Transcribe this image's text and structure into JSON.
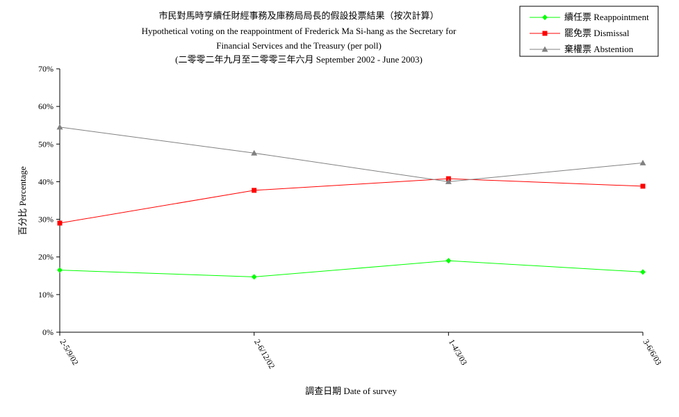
{
  "chart_data": {
    "type": "line",
    "title_lines": [
      "市民對馬時亨續任財經事務及庫務局局長的假設投票結果（按次計算）",
      "Hypothetical voting on the reappointment of  Frederick Ma Si-hang as the Secretary for",
      "Financial Services and the Treasury (per poll)",
      "(二零零二年九月至二零零三年六月 September 2002 - June 2003)"
    ],
    "xlabel": "調查日期 Date of survey",
    "ylabel": "百分比 Percentage",
    "categories": [
      "2-5/9/02",
      "2-6/12/02",
      "1-4/3/03",
      "3-6/6/03"
    ],
    "ylim": [
      0,
      70
    ],
    "yticks": [
      0,
      10,
      20,
      30,
      40,
      50,
      60,
      70
    ],
    "ytick_labels": [
      "0%",
      "10%",
      "20%",
      "30%",
      "40%",
      "50%",
      "60%",
      "70%"
    ],
    "grid": false,
    "legend_position": "top-right",
    "series": [
      {
        "name": "續任票 Reappointment",
        "color": "#00ff00",
        "marker": "diamond",
        "values": [
          16.5,
          14.7,
          19.0,
          16.0
        ]
      },
      {
        "name": "罷免票 Dismissal",
        "color": "#ff0000",
        "marker": "square",
        "values": [
          29.0,
          37.7,
          40.8,
          38.8
        ]
      },
      {
        "name": "棄權票 Abstention",
        "color": "#808080",
        "marker": "triangle",
        "values": [
          54.5,
          47.6,
          40.0,
          45.0
        ]
      }
    ]
  }
}
